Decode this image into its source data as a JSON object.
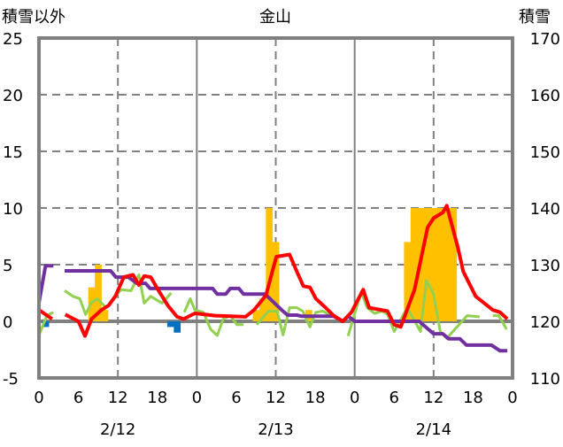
{
  "chart_data": {
    "type": "bar+line",
    "title": "金山",
    "ylabel_left": "積雪以外",
    "ylabel_right": "積雪",
    "ylim_left": [
      -5,
      25
    ],
    "ylim_right": [
      110,
      170
    ],
    "yticks_left": [
      "25",
      "20",
      "15",
      "10",
      "5",
      "0",
      "-5"
    ],
    "yticks_left_values": [
      25,
      20,
      15,
      10,
      5,
      0,
      -5
    ],
    "yticks_right": [
      "170",
      "160",
      "150",
      "140",
      "130",
      "120",
      "110"
    ],
    "yticks_right_values": [
      170,
      160,
      150,
      140,
      130,
      120,
      110
    ],
    "xlim_hours": [
      0,
      72
    ],
    "xticks": [
      "0",
      "6",
      "12",
      "18",
      "0",
      "6",
      "12",
      "18",
      "0",
      "6",
      "12",
      "18",
      "0"
    ],
    "xticks_hours": [
      0,
      6,
      12,
      18,
      24,
      30,
      36,
      42,
      48,
      54,
      60,
      66,
      72
    ],
    "date_labels": [
      "2/12",
      "2/13",
      "2/14"
    ],
    "date_label_hours": [
      12,
      36,
      60
    ],
    "grid": "dashed horizontal at 5 units; dashed vertical at 12h; solid vertical at day boundaries",
    "colors": {
      "snowfall": "#FFC000",
      "negative": "#0070C0",
      "red": "#FF0000",
      "green": "#92D050",
      "purple": "#7030A0",
      "axis": "#808080"
    },
    "bars_positive": {
      "name": "snowfall",
      "hours": [
        8,
        9,
        10,
        33,
        34,
        35,
        36,
        41,
        56,
        57,
        58,
        59,
        60,
        61,
        62,
        63
      ],
      "values": [
        3,
        5,
        1,
        1,
        2,
        10,
        7,
        1,
        7,
        10,
        10,
        10,
        10,
        10,
        10,
        10
      ]
    },
    "bars_negative": {
      "name": "negative",
      "hours": [
        1,
        20,
        21
      ],
      "values": [
        -0.5,
        -0.5,
        -1
      ]
    },
    "series": [
      {
        "name": "red",
        "axis": "left",
        "segments": [
          [
            [
              0,
              1.0
            ],
            [
              2,
              0.2
            ]
          ],
          [
            [
              4,
              0.6
            ],
            [
              6,
              0
            ],
            [
              7,
              -1.3
            ],
            [
              8,
              0.2
            ],
            [
              9.5,
              1.0
            ],
            [
              10.6,
              1.4
            ],
            [
              11.6,
              2.2
            ],
            [
              12.9,
              3.9
            ],
            [
              14.3,
              4.1
            ],
            [
              15.2,
              3.2
            ],
            [
              16,
              4.0
            ],
            [
              17,
              3.9
            ],
            [
              18.3,
              2.6
            ],
            [
              19.6,
              1.4
            ],
            [
              21,
              0.4
            ],
            [
              22,
              0.2
            ],
            [
              23.7,
              0.7
            ],
            [
              26.8,
              0.5
            ],
            [
              31.4,
              0.4
            ],
            [
              32.7,
              1.0
            ],
            [
              34.5,
              2.3
            ],
            [
              36.1,
              5.7
            ],
            [
              38.1,
              5.9
            ],
            [
              39.2,
              4.4
            ],
            [
              40.2,
              3.1
            ],
            [
              41.2,
              3.0
            ],
            [
              42.1,
              2.0
            ],
            [
              43.5,
              1.25
            ],
            [
              44.8,
              0.5
            ],
            [
              46.2,
              0
            ],
            [
              47.5,
              0.8
            ],
            [
              49.3,
              2.8
            ],
            [
              50.2,
              1.2
            ],
            [
              53.0,
              0.9
            ],
            [
              54.0,
              -0.3
            ],
            [
              55.0,
              -0.5
            ],
            [
              57.1,
              2.8
            ],
            [
              59.1,
              8.3
            ],
            [
              60.0,
              9.1
            ],
            [
              61.4,
              9.6
            ],
            [
              62.0,
              10.2
            ],
            [
              63.7,
              6.5
            ],
            [
              64.5,
              4.4
            ],
            [
              66.4,
              2.2
            ],
            [
              69.0,
              1.0
            ],
            [
              70.1,
              0.8
            ],
            [
              71.2,
              0.2
            ]
          ]
        ]
      },
      {
        "name": "green",
        "axis": "left",
        "segments": [
          [
            [
              0.1,
              -1.1
            ],
            [
              1.2,
              0.5
            ],
            [
              2.2,
              0.8
            ]
          ],
          [
            [
              3.9,
              2.7
            ],
            [
              5.2,
              2.2
            ],
            [
              6.2,
              2.0
            ],
            [
              7.1,
              0.6
            ],
            [
              7.9,
              1.6
            ],
            [
              8.9,
              2.0
            ],
            [
              10.2,
              1.2
            ],
            [
              11.6,
              2.2
            ],
            [
              12.5,
              2.8
            ],
            [
              14.0,
              2.7
            ],
            [
              15.2,
              4.1
            ],
            [
              16.0,
              1.6
            ],
            [
              17.0,
              2.2
            ],
            [
              18.7,
              1.6
            ],
            [
              20.1,
              2.5
            ]
          ],
          [
            [
              22.1,
              0.8
            ],
            [
              23.0,
              2.0
            ],
            [
              23.7,
              1.0
            ],
            [
              25.0,
              0.8
            ],
            [
              26.1,
              -0.7
            ],
            [
              27.1,
              -1.25
            ],
            [
              28.0,
              0.2
            ],
            [
              29.1,
              0.5
            ],
            [
              30.1,
              -0.3
            ],
            [
              31.1,
              -0.3
            ]
          ],
          [
            [
              33.1,
              -0.3
            ],
            [
              34.9,
              0.9
            ],
            [
              36.2,
              0.9
            ],
            [
              37.1,
              -1.2
            ],
            [
              38.1,
              1.2
            ],
            [
              39.2,
              1.2
            ],
            [
              40.1,
              0.9
            ],
            [
              41.2,
              -0.5
            ],
            [
              42.1,
              0.8
            ],
            [
              43.2,
              0.9
            ],
            [
              44.3,
              0.5
            ]
          ],
          [
            [
              47.0,
              -1.3
            ],
            [
              49.0,
              2.6
            ],
            [
              49.9,
              1.2
            ],
            [
              51.0,
              0.7
            ],
            [
              52.2,
              0.9
            ],
            [
              53.0,
              0.6
            ],
            [
              54.0,
              -0.9
            ],
            [
              56.0,
              1.2
            ],
            [
              58.0,
              -0.9
            ],
            [
              58.9,
              3.6
            ],
            [
              60.0,
              2.4
            ],
            [
              61.0,
              -0.9
            ],
            [
              62.0,
              -1.5
            ],
            [
              63.7,
              -0.4
            ],
            [
              65.1,
              0.5
            ],
            [
              67.0,
              0.4
            ]
          ],
          [
            [
              69.0,
              0.5
            ],
            [
              69.9,
              0.5
            ],
            [
              71.1,
              -0.7
            ]
          ]
        ]
      },
      {
        "name": "purple",
        "axis": "right",
        "segments": [
          [
            [
              0,
              123.3
            ],
            [
              1,
              129.8
            ],
            [
              2.2,
              129.8
            ]
          ],
          [
            [
              3.9,
              128.9
            ],
            [
              10.9,
              128.9
            ],
            [
              11.7,
              127.8
            ],
            [
              13.6,
              127.8
            ],
            [
              14.9,
              126.7
            ],
            [
              16.2,
              126.7
            ],
            [
              16.9,
              125.8
            ],
            [
              26.4,
              125.8
            ],
            [
              27.1,
              124.8
            ],
            [
              28.4,
              124.8
            ],
            [
              29.1,
              125.8
            ],
            [
              30.4,
              125.8
            ],
            [
              31.1,
              124.8
            ],
            [
              34.4,
              124.8
            ],
            [
              36.9,
              122.0
            ],
            [
              37.8,
              121.1
            ],
            [
              39.2,
              121.1
            ],
            [
              39.9,
              120.9
            ],
            [
              44.8,
              120.9
            ],
            [
              46.2,
              120
            ],
            [
              47,
              120.9
            ],
            [
              48,
              120
            ],
            [
              57.8,
              120
            ],
            [
              60,
              117.8
            ],
            [
              61.4,
              117.8
            ],
            [
              62.3,
              116.9
            ],
            [
              64,
              116.9
            ],
            [
              65,
              115.8
            ],
            [
              68.8,
              115.8
            ],
            [
              70.1,
              114.8
            ],
            [
              71.2,
              114.8
            ]
          ]
        ]
      }
    ]
  }
}
